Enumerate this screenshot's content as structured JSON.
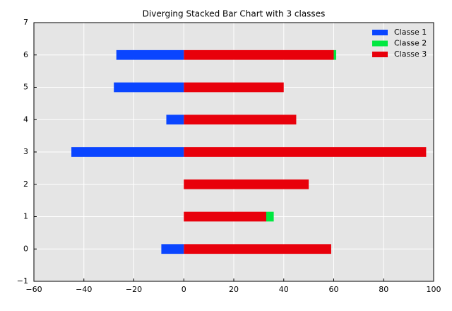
{
  "chart_data": {
    "type": "barh_diverging_stacked",
    "title": "Diverging Stacked Bar Chart with 3 classes",
    "y": [
      0,
      1,
      2,
      3,
      4,
      5,
      6
    ],
    "series": [
      {
        "name": "Classe 1",
        "color": "#0a45ff",
        "values": [
          -9,
          0,
          0,
          -45,
          -7,
          -28,
          -27
        ]
      },
      {
        "name": "Classe 2",
        "color": "#00e840",
        "values": [
          0,
          3,
          0,
          0,
          0,
          0,
          1
        ]
      },
      {
        "name": "Classe 3",
        "color": "#e8000b",
        "values": [
          59,
          33,
          50,
          97,
          45,
          40,
          60
        ]
      }
    ],
    "xlim": [
      -60,
      100
    ],
    "xticks": [
      {
        "value": -60,
        "label": "−60"
      },
      {
        "value": -40,
        "label": "−40"
      },
      {
        "value": -20,
        "label": "−20"
      },
      0,
      20,
      40,
      60,
      80,
      100
    ],
    "ylim": [
      -1,
      7
    ],
    "yticks": [
      {
        "value": -1,
        "label": "−1"
      },
      0,
      1,
      2,
      3,
      4,
      5,
      6,
      7
    ],
    "grid": true,
    "legend": "upper right"
  }
}
